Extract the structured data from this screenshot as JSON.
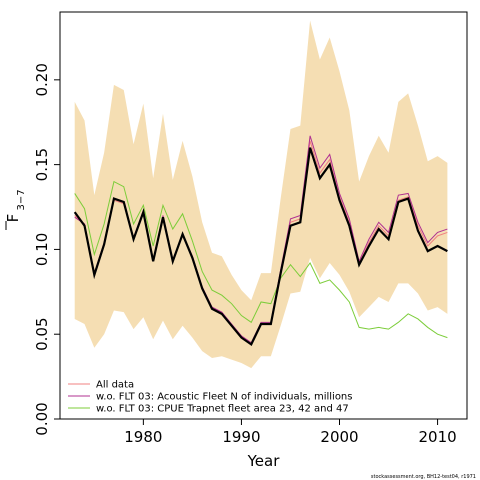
{
  "chart_data": {
    "type": "line",
    "ylabel_main": "F",
    "ylabel_sub": "3−7",
    "xlabel": "Year",
    "xlim": [
      1971.5,
      2013
    ],
    "ylim": [
      0,
      0.24
    ],
    "xticks": [
      1980,
      1990,
      2000,
      2010
    ],
    "yticks": [
      "0.00",
      "0.05",
      "0.10",
      "0.15",
      "0.20"
    ],
    "ytick_values": [
      0,
      0.05,
      0.1,
      0.15,
      0.2
    ],
    "x": [
      1973,
      1974,
      1975,
      1976,
      1977,
      1978,
      1979,
      1980,
      1981,
      1982,
      1983,
      1984,
      1985,
      1986,
      1987,
      1988,
      1989,
      1990,
      1991,
      1992,
      1993,
      1994,
      1995,
      1996,
      1997,
      1998,
      1999,
      2000,
      2001,
      2002,
      2003,
      2004,
      2005,
      2006,
      2007,
      2008,
      2009,
      2010,
      2011
    ],
    "band": {
      "color": "#F5DEB3",
      "upper": [
        0.187,
        0.176,
        0.132,
        0.157,
        0.197,
        0.194,
        0.162,
        0.186,
        0.142,
        0.18,
        0.141,
        0.164,
        0.143,
        0.116,
        0.098,
        0.096,
        0.085,
        0.076,
        0.07,
        0.086,
        0.086,
        0.13,
        0.171,
        0.173,
        0.235,
        0.212,
        0.225,
        0.205,
        0.182,
        0.14,
        0.155,
        0.167,
        0.157,
        0.187,
        0.192,
        0.173,
        0.152,
        0.155,
        0.151
      ],
      "lower": [
        0.059,
        0.056,
        0.042,
        0.05,
        0.064,
        0.063,
        0.053,
        0.06,
        0.047,
        0.058,
        0.047,
        0.055,
        0.048,
        0.04,
        0.036,
        0.037,
        0.035,
        0.033,
        0.03,
        0.037,
        0.037,
        0.055,
        0.074,
        0.075,
        0.095,
        0.083,
        0.092,
        0.085,
        0.075,
        0.06,
        0.066,
        0.072,
        0.069,
        0.08,
        0.08,
        0.074,
        0.064,
        0.066,
        0.062
      ]
    },
    "base": {
      "name": "base",
      "color": "#000000",
      "values": [
        0.122,
        0.114,
        0.085,
        0.103,
        0.13,
        0.128,
        0.106,
        0.122,
        0.093,
        0.119,
        0.093,
        0.109,
        0.095,
        0.077,
        0.065,
        0.062,
        0.055,
        0.048,
        0.044,
        0.056,
        0.056,
        0.086,
        0.114,
        0.116,
        0.16,
        0.142,
        0.15,
        0.129,
        0.114,
        0.091,
        0.102,
        0.112,
        0.106,
        0.128,
        0.13,
        0.111,
        0.099,
        0.102,
        0.099
      ]
    },
    "series": [
      {
        "name": "All data",
        "color": "#F08080",
        "values": [
          0.12,
          0.115,
          0.085,
          0.103,
          0.129,
          0.127,
          0.106,
          0.122,
          0.093,
          0.119,
          0.093,
          0.108,
          0.095,
          0.077,
          0.065,
          0.063,
          0.055,
          0.049,
          0.044,
          0.056,
          0.056,
          0.087,
          0.116,
          0.118,
          0.164,
          0.145,
          0.153,
          0.131,
          0.116,
          0.092,
          0.104,
          0.114,
          0.108,
          0.129,
          0.131,
          0.114,
          0.102,
          0.108,
          0.11
        ]
      },
      {
        "name": "w.o. FLT 03: Acoustic Fleet  N of individuals, millions",
        "color": "#B03090",
        "values": [
          0.119,
          0.115,
          0.086,
          0.104,
          0.13,
          0.128,
          0.107,
          0.123,
          0.094,
          0.12,
          0.094,
          0.109,
          0.096,
          0.078,
          0.066,
          0.063,
          0.056,
          0.049,
          0.045,
          0.057,
          0.057,
          0.088,
          0.118,
          0.12,
          0.167,
          0.148,
          0.156,
          0.133,
          0.118,
          0.093,
          0.106,
          0.116,
          0.11,
          0.132,
          0.133,
          0.116,
          0.104,
          0.11,
          0.112
        ]
      },
      {
        "name": "w.o. FLT 03: CPUE Trapnet fleet area 23, 42 and 47",
        "color": "#7CCD3A",
        "values": [
          0.133,
          0.124,
          0.097,
          0.115,
          0.14,
          0.137,
          0.115,
          0.126,
          0.102,
          0.126,
          0.112,
          0.121,
          0.105,
          0.087,
          0.076,
          0.073,
          0.068,
          0.061,
          0.057,
          0.069,
          0.068,
          0.083,
          0.091,
          0.084,
          0.092,
          0.08,
          0.082,
          0.076,
          0.069,
          0.054,
          0.053,
          0.054,
          0.053,
          0.057,
          0.062,
          0.059,
          0.054,
          0.05,
          0.048
        ]
      }
    ],
    "legend_position": "bottom-left",
    "grid": false
  },
  "footer": {
    "credit": "stockassessment.org, BH12-test04, r1971"
  }
}
